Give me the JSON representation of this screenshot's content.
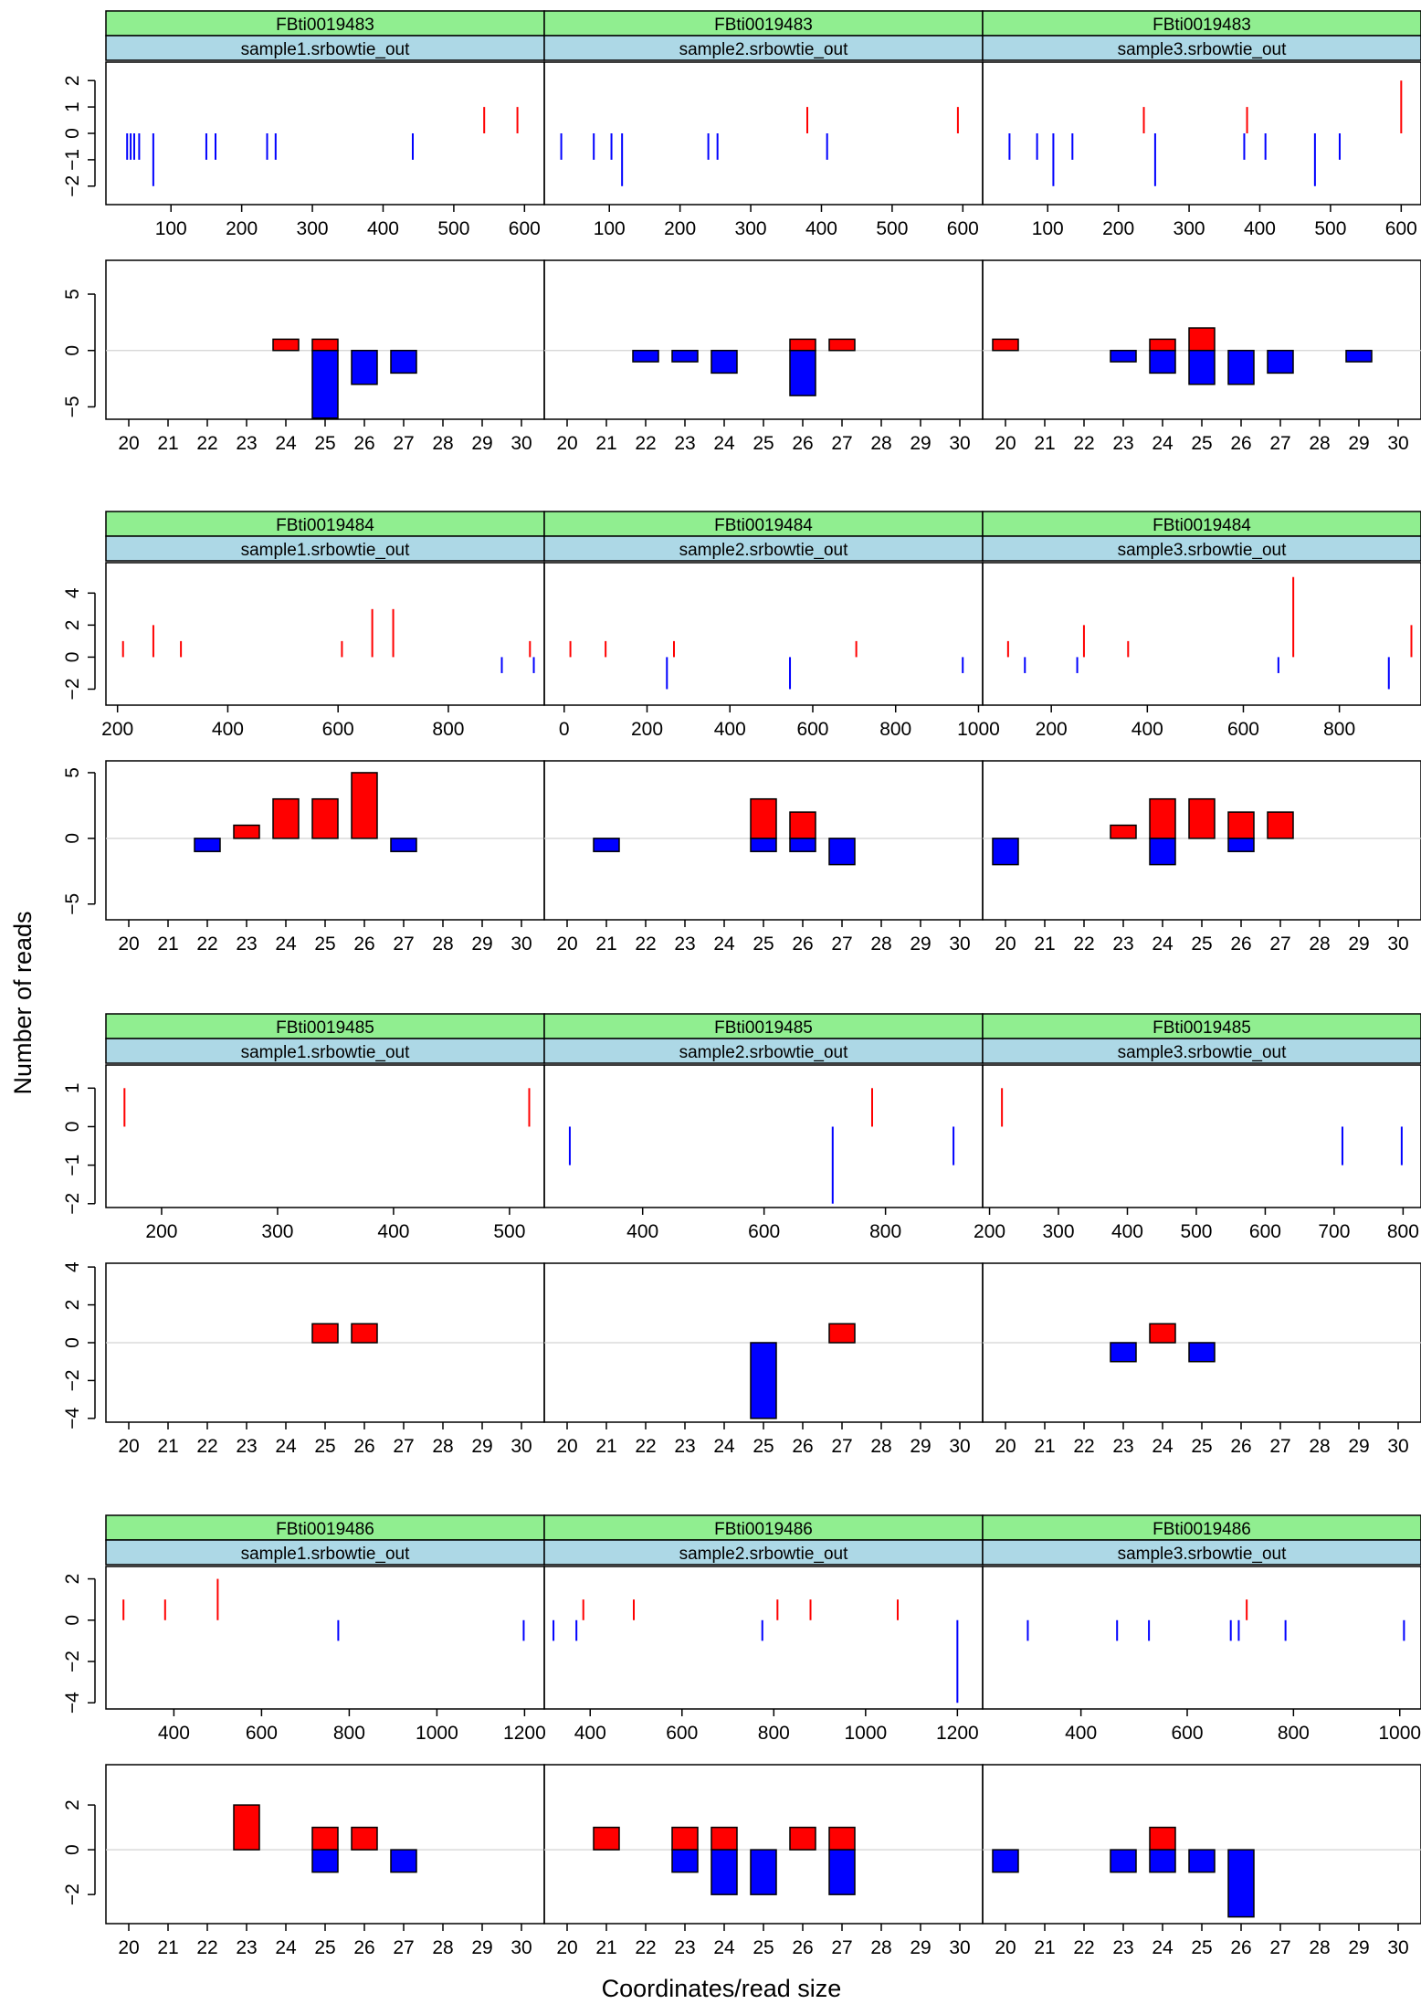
{
  "figure": {
    "ylabel": "Number of reads",
    "xlabel": "Coordinates/read size"
  },
  "colors": {
    "strip_top": "#90EE90",
    "strip_bottom": "#ADD8E6",
    "positive": "#FF0000",
    "negative": "#0000FF",
    "zero_line": "#D3D3D3",
    "frame": "#000000"
  },
  "chart_data": [
    {
      "element": "FBti0019483",
      "coverage": {
        "type": "bar",
        "ylim": [
          -2.7,
          2.7
        ],
        "yticks": [
          -2,
          -1,
          0,
          1,
          2
        ],
        "panels": [
          {
            "sample": "sample1.srbowtie_out",
            "xlim": [
              8,
              628
            ],
            "xticks": [
              100,
              200,
              300,
              400,
              500,
              600
            ],
            "pos": [
              [
                543,
                1
              ],
              [
                590,
                1
              ]
            ],
            "neg": [
              [
                38,
                -1
              ],
              [
                43,
                -1
              ],
              [
                48,
                -1
              ],
              [
                55,
                -1
              ],
              [
                75,
                -2
              ],
              [
                150,
                -1
              ],
              [
                163,
                -1
              ],
              [
                236,
                -1
              ],
              [
                248,
                -1
              ],
              [
                442,
                -1
              ]
            ]
          },
          {
            "sample": "sample2.srbowtie_out",
            "xlim": [
              8,
              628
            ],
            "xticks": [
              100,
              200,
              300,
              400,
              500,
              600
            ],
            "pos": [
              [
                380,
                1
              ],
              [
                593,
                1
              ]
            ],
            "neg": [
              [
                32,
                -1
              ],
              [
                78,
                -1
              ],
              [
                103,
                -1
              ],
              [
                118,
                -2
              ],
              [
                240,
                -1
              ],
              [
                253,
                -1
              ],
              [
                408,
                -1
              ]
            ]
          },
          {
            "sample": "sample3.srbowtie_out",
            "xlim": [
              8,
              628
            ],
            "xticks": [
              100,
              200,
              300,
              400,
              500,
              600
            ],
            "pos": [
              [
                236,
                1
              ],
              [
                382,
                1
              ],
              [
                600,
                2
              ]
            ],
            "neg": [
              [
                46,
                -1
              ],
              [
                85,
                -1
              ],
              [
                108,
                -2
              ],
              [
                135,
                -1
              ],
              [
                252,
                -2
              ],
              [
                378,
                -1
              ],
              [
                408,
                -1
              ],
              [
                478,
                -2
              ],
              [
                513,
                -1
              ]
            ]
          }
        ]
      },
      "size": {
        "type": "bar",
        "ylim": [
          -6.1,
          8
        ],
        "yticks": [
          -5,
          0,
          5
        ],
        "categories": [
          "20",
          "21",
          "22",
          "23",
          "24",
          "25",
          "26",
          "27",
          "28",
          "29",
          "30"
        ],
        "panels": [
          {
            "sample": "sample1.srbowtie_out",
            "pos": [
              0,
              0,
              0,
              0,
              1,
              1,
              0,
              0,
              0,
              0,
              0
            ],
            "neg": [
              0,
              0,
              0,
              0,
              0,
              -6,
              -3,
              -2,
              0,
              0,
              0
            ]
          },
          {
            "sample": "sample2.srbowtie_out",
            "pos": [
              0,
              0,
              0,
              0,
              0,
              0,
              1,
              1,
              0,
              0,
              0
            ],
            "neg": [
              0,
              0,
              -1,
              -1,
              -2,
              0,
              -4,
              0,
              0,
              0,
              0
            ]
          },
          {
            "sample": "sample3.srbowtie_out",
            "pos": [
              1,
              0,
              0,
              0,
              1,
              2,
              0,
              0,
              0,
              0,
              0
            ],
            "neg": [
              0,
              0,
              0,
              -1,
              -2,
              -3,
              -3,
              -2,
              0,
              -1,
              0
            ]
          }
        ]
      }
    },
    {
      "element": "FBti0019484",
      "coverage": {
        "type": "bar",
        "ylim": [
          -3,
          5.9
        ],
        "yticks": [
          -2,
          0,
          2,
          4
        ],
        "panels": [
          {
            "sample": "sample1.srbowtie_out",
            "xlim": [
              179,
              974
            ],
            "xticks": [
              200,
              400,
              600,
              800
            ],
            "pos": [
              [
                210,
                1
              ],
              [
                265,
                2
              ],
              [
                315,
                1
              ],
              [
                607,
                1
              ],
              [
                662,
                3
              ],
              [
                700,
                3
              ],
              [
                948,
                1
              ]
            ],
            "neg": [
              [
                897,
                -1
              ],
              [
                955,
                -1
              ]
            ]
          },
          {
            "sample": "sample2.srbowtie_out",
            "xlim": [
              -48,
              1010
            ],
            "xticks": [
              0,
              200,
              400,
              600,
              800,
              1000
            ],
            "pos": [
              [
                15,
                1
              ],
              [
                100,
                1
              ],
              [
                265,
                1
              ],
              [
                705,
                1
              ]
            ],
            "neg": [
              [
                248,
                -2
              ],
              [
                545,
                -2
              ],
              [
                962,
                -1
              ]
            ]
          },
          {
            "sample": "sample3.srbowtie_out",
            "xlim": [
              57,
              970
            ],
            "xticks": [
              200,
              400,
              600,
              800
            ],
            "pos": [
              [
                110,
                1
              ],
              [
                268,
                2
              ],
              [
                360,
                1
              ],
              [
                704,
                5
              ],
              [
                950,
                2
              ]
            ],
            "neg": [
              [
                145,
                -1
              ],
              [
                254,
                -1
              ],
              [
                673,
                -1
              ],
              [
                903,
                -2
              ]
            ]
          }
        ]
      },
      "size": {
        "type": "bar",
        "ylim": [
          -6.2,
          5.9
        ],
        "yticks": [
          -5,
          0,
          5
        ],
        "categories": [
          "20",
          "21",
          "22",
          "23",
          "24",
          "25",
          "26",
          "27",
          "28",
          "29",
          "30"
        ],
        "panels": [
          {
            "sample": "sample1.srbowtie_out",
            "pos": [
              0,
              0,
              0,
              1,
              3,
              3,
              5,
              0,
              0,
              0,
              0
            ],
            "neg": [
              0,
              0,
              -1,
              0,
              0,
              0,
              0,
              -1,
              0,
              0,
              0
            ]
          },
          {
            "sample": "sample2.srbowtie_out",
            "pos": [
              0,
              0,
              0,
              0,
              0,
              3,
              2,
              0,
              0,
              0,
              0
            ],
            "neg": [
              0,
              -1,
              0,
              0,
              0,
              -1,
              -1,
              -2,
              0,
              0,
              0
            ]
          },
          {
            "sample": "sample3.srbowtie_out",
            "pos": [
              0,
              0,
              0,
              1,
              3,
              3,
              2,
              2,
              0,
              0,
              0
            ],
            "neg": [
              -2,
              0,
              0,
              0,
              -2,
              0,
              -1,
              0,
              0,
              0,
              0
            ]
          }
        ]
      }
    },
    {
      "element": "FBti0019485",
      "coverage": {
        "type": "bar",
        "ylim": [
          -2.1,
          1.6
        ],
        "yticks": [
          -2,
          -1,
          0,
          1
        ],
        "panels": [
          {
            "sample": "sample1.srbowtie_out",
            "xlim": [
              152,
              530
            ],
            "xticks": [
              200,
              300,
              400,
              500
            ],
            "pos": [
              [
                168,
                1
              ],
              [
                517,
                1
              ]
            ],
            "neg": []
          },
          {
            "sample": "sample2.srbowtie_out",
            "xlim": [
              238,
              960
            ],
            "xticks": [
              400,
              600,
              800
            ],
            "pos": [
              [
                778,
                1
              ]
            ],
            "neg": [
              [
                280,
                -1
              ],
              [
                713,
                -2
              ],
              [
                912,
                -1
              ]
            ]
          },
          {
            "sample": "sample3.srbowtie_out",
            "xlim": [
              190,
              826
            ],
            "xticks": [
              200,
              300,
              400,
              500,
              600,
              700,
              800
            ],
            "pos": [
              [
                218,
                1
              ]
            ],
            "neg": [
              [
                712,
                -1
              ],
              [
                798,
                -1
              ]
            ]
          }
        ]
      },
      "size": {
        "type": "bar",
        "ylim": [
          -4.2,
          4.2
        ],
        "yticks": [
          -4,
          -2,
          0,
          2,
          4
        ],
        "categories": [
          "20",
          "21",
          "22",
          "23",
          "24",
          "25",
          "26",
          "27",
          "28",
          "29",
          "30"
        ],
        "panels": [
          {
            "sample": "sample1.srbowtie_out",
            "pos": [
              0,
              0,
              0,
              0,
              0,
              1,
              1,
              0,
              0,
              0,
              0
            ],
            "neg": [
              0,
              0,
              0,
              0,
              0,
              0,
              0,
              0,
              0,
              0,
              0
            ]
          },
          {
            "sample": "sample2.srbowtie_out",
            "pos": [
              0,
              0,
              0,
              0,
              0,
              0,
              0,
              1,
              0,
              0,
              0
            ],
            "neg": [
              0,
              0,
              0,
              0,
              0,
              -4,
              0,
              0,
              0,
              0,
              0
            ]
          },
          {
            "sample": "sample3.srbowtie_out",
            "pos": [
              0,
              0,
              0,
              0,
              1,
              0,
              0,
              0,
              0,
              0,
              0
            ],
            "neg": [
              0,
              0,
              0,
              -1,
              0,
              -1,
              0,
              0,
              0,
              0,
              0
            ]
          }
        ]
      }
    },
    {
      "element": "FBti0019486",
      "coverage": {
        "type": "bar",
        "ylim": [
          -4.3,
          2.6
        ],
        "yticks": [
          -4,
          -2,
          0,
          2
        ],
        "panels": [
          {
            "sample": "sample1.srbowtie_out",
            "xlim": [
              245,
              1245
            ],
            "xticks": [
              400,
              600,
              800,
              1000,
              1200
            ],
            "pos": [
              [
                285,
                1
              ],
              [
                380,
                1
              ],
              [
                500,
                2
              ]
            ],
            "neg": [
              [
                775,
                -1
              ],
              [
                1198,
                -1
              ]
            ]
          },
          {
            "sample": "sample2.srbowtie_out",
            "xlim": [
              300,
              1255
            ],
            "xticks": [
              400,
              600,
              800,
              1000,
              1200
            ],
            "pos": [
              [
                385,
                1
              ],
              [
                495,
                1
              ],
              [
                808,
                1
              ],
              [
                880,
                1
              ],
              [
                1070,
                1
              ]
            ],
            "neg": [
              [
                320,
                -1
              ],
              [
                370,
                -1
              ],
              [
                775,
                -1
              ],
              [
                1200,
                -4
              ]
            ]
          },
          {
            "sample": "sample3.srbowtie_out",
            "xlim": [
              215,
              1040
            ],
            "xticks": [
              400,
              600,
              800,
              1000
            ],
            "pos": [
              [
                712,
                1
              ]
            ],
            "neg": [
              [
                300,
                -1
              ],
              [
                468,
                -1
              ],
              [
                528,
                -1
              ],
              [
                682,
                -1
              ],
              [
                697,
                -1
              ],
              [
                785,
                -1
              ],
              [
                1008,
                -1
              ]
            ]
          }
        ]
      },
      "size": {
        "type": "bar",
        "ylim": [
          -3.3,
          3.8
        ],
        "yticks": [
          -2,
          0,
          2
        ],
        "categories": [
          "20",
          "21",
          "22",
          "23",
          "24",
          "25",
          "26",
          "27",
          "28",
          "29",
          "30"
        ],
        "panels": [
          {
            "sample": "sample1.srbowtie_out",
            "pos": [
              0,
              0,
              0,
              2,
              0,
              1,
              1,
              0,
              0,
              0,
              0
            ],
            "neg": [
              0,
              0,
              0,
              0,
              0,
              -1,
              0,
              -1,
              0,
              0,
              0
            ]
          },
          {
            "sample": "sample2.srbowtie_out",
            "pos": [
              0,
              1,
              0,
              1,
              1,
              0,
              1,
              1,
              0,
              0,
              0
            ],
            "neg": [
              0,
              0,
              0,
              -1,
              -2,
              -2,
              0,
              -2,
              0,
              0,
              0
            ]
          },
          {
            "sample": "sample3.srbowtie_out",
            "pos": [
              0,
              0,
              0,
              0,
              1,
              0,
              0,
              0,
              0,
              0,
              0
            ],
            "neg": [
              -1,
              0,
              0,
              -1,
              -1,
              -1,
              -3,
              0,
              0,
              0,
              0
            ]
          }
        ]
      }
    }
  ]
}
